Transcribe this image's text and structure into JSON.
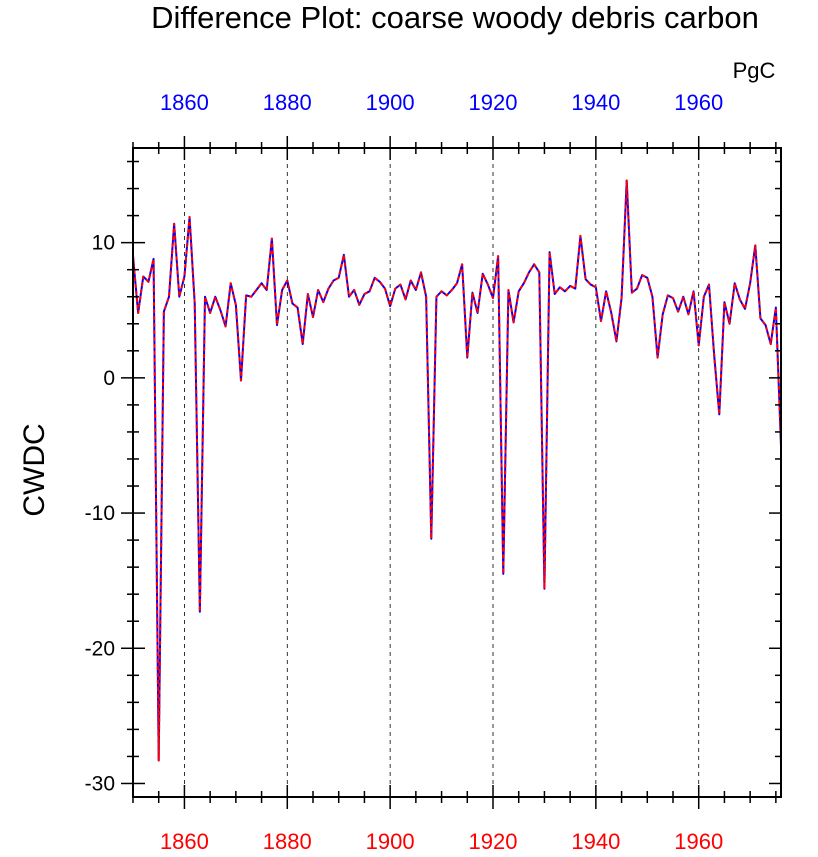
{
  "chart_data": {
    "type": "line",
    "title": "Difference Plot: coarse woody debris carbon",
    "units": "PgC",
    "ylabel": "CWDC",
    "xlabel": "",
    "xlim": [
      1850,
      1976
    ],
    "ylim": [
      -31,
      17
    ],
    "yticks": [
      10,
      0,
      -10,
      -20,
      -30
    ],
    "xticks_bottom": [
      1860,
      1880,
      1900,
      1920,
      1940,
      1960
    ],
    "xticks_top": [
      1860,
      1880,
      1900,
      1920,
      1940,
      1960
    ],
    "grid": "vertical dashed at major x ticks",
    "colors": {
      "bottom_axis": "#ff0000",
      "top_axis": "#0000ff",
      "series_1": "#0000ff",
      "series_2": "#ff0000"
    },
    "series": [
      {
        "line_style": "solid",
        "color": "#0000ff",
        "x": [
          1850,
          1851,
          1852,
          1853,
          1854,
          1855,
          1856,
          1857,
          1858,
          1859,
          1860,
          1861,
          1862,
          1863,
          1864,
          1865,
          1866,
          1867,
          1868,
          1869,
          1870,
          1871,
          1872,
          1873,
          1874,
          1875,
          1876,
          1877,
          1878,
          1879,
          1880,
          1881,
          1882,
          1883,
          1884,
          1885,
          1886,
          1887,
          1888,
          1889,
          1890,
          1891,
          1892,
          1893,
          1894,
          1895,
          1896,
          1897,
          1898,
          1899,
          1900,
          1901,
          1902,
          1903,
          1904,
          1905,
          1906,
          1907,
          1908,
          1909,
          1910,
          1911,
          1912,
          1913,
          1914,
          1915,
          1916,
          1917,
          1918,
          1919,
          1920,
          1921,
          1922,
          1923,
          1924,
          1925,
          1926,
          1927,
          1928,
          1929,
          1930,
          1931,
          1932,
          1933,
          1934,
          1935,
          1936,
          1937,
          1938,
          1939,
          1940,
          1941,
          1942,
          1943,
          1944,
          1945,
          1946,
          1947,
          1948,
          1949,
          1950,
          1951,
          1952,
          1953,
          1954,
          1955,
          1956,
          1957,
          1958,
          1959,
          1960,
          1961,
          1962,
          1963,
          1964,
          1965,
          1966,
          1967,
          1968,
          1969,
          1970,
          1971,
          1972,
          1973,
          1974,
          1975,
          1976
        ],
        "y": [
          9.0,
          4.8,
          7.5,
          7.1,
          8.8,
          -28.3,
          4.9,
          6.0,
          11.4,
          6.0,
          7.5,
          11.9,
          5.5,
          -17.3,
          6.0,
          4.8,
          6.0,
          5.0,
          3.8,
          7.0,
          5.4,
          -0.2,
          6.1,
          6.0,
          6.5,
          7.0,
          6.5,
          10.3,
          3.9,
          6.5,
          7.2,
          5.5,
          5.2,
          2.5,
          6.2,
          4.5,
          6.5,
          5.6,
          6.6,
          7.2,
          7.4,
          9.1,
          6.0,
          6.5,
          5.4,
          6.2,
          6.4,
          7.4,
          7.1,
          6.6,
          5.3,
          6.6,
          6.9,
          5.8,
          7.2,
          6.5,
          7.8,
          6.0,
          -11.9,
          6.0,
          6.4,
          6.1,
          6.5,
          7.0,
          8.4,
          1.5,
          6.3,
          4.8,
          7.7,
          6.9,
          5.9,
          9.0,
          -14.5,
          6.5,
          4.1,
          6.4,
          7.0,
          7.8,
          8.4,
          7.8,
          -15.6,
          9.3,
          6.2,
          6.7,
          6.4,
          6.8,
          6.6,
          10.5,
          7.3,
          6.9,
          6.7,
          4.2,
          6.4,
          4.8,
          2.7,
          5.9,
          14.6,
          6.3,
          6.6,
          7.6,
          7.4,
          6.0,
          1.5,
          4.7,
          6.1,
          5.9,
          4.9,
          6.0,
          4.7,
          6.4,
          2.4,
          6.0,
          6.9,
          1.7,
          -2.7,
          5.6,
          4.0,
          7.0,
          5.8,
          5.1,
          7.0,
          9.8,
          4.4,
          3.9,
          2.5,
          5.2,
          -5.0
        ]
      },
      {
        "line_style": "dashed",
        "color": "#ff0000",
        "x": [
          1850,
          1851,
          1852,
          1853,
          1854,
          1855,
          1856,
          1857,
          1858,
          1859,
          1860,
          1861,
          1862,
          1863,
          1864,
          1865,
          1866,
          1867,
          1868,
          1869,
          1870,
          1871,
          1872,
          1873,
          1874,
          1875,
          1876,
          1877,
          1878,
          1879,
          1880,
          1881,
          1882,
          1883,
          1884,
          1885,
          1886,
          1887,
          1888,
          1889,
          1890,
          1891,
          1892,
          1893,
          1894,
          1895,
          1896,
          1897,
          1898,
          1899,
          1900,
          1901,
          1902,
          1903,
          1904,
          1905,
          1906,
          1907,
          1908,
          1909,
          1910,
          1911,
          1912,
          1913,
          1914,
          1915,
          1916,
          1917,
          1918,
          1919,
          1920,
          1921,
          1922,
          1923,
          1924,
          1925,
          1926,
          1927,
          1928,
          1929,
          1930,
          1931,
          1932,
          1933,
          1934,
          1935,
          1936,
          1937,
          1938,
          1939,
          1940,
          1941,
          1942,
          1943,
          1944,
          1945,
          1946,
          1947,
          1948,
          1949,
          1950,
          1951,
          1952,
          1953,
          1954,
          1955,
          1956,
          1957,
          1958,
          1959,
          1960,
          1961,
          1962,
          1963,
          1964,
          1965,
          1966,
          1967,
          1968,
          1969,
          1970,
          1971,
          1972,
          1973,
          1974,
          1975,
          1976
        ],
        "y": [
          9.0,
          4.8,
          7.5,
          7.1,
          8.8,
          -28.3,
          4.9,
          6.0,
          11.4,
          6.0,
          7.5,
          11.9,
          5.5,
          -17.3,
          6.0,
          4.8,
          6.0,
          5.0,
          3.8,
          7.0,
          5.4,
          -0.2,
          6.1,
          6.0,
          6.5,
          7.0,
          6.5,
          10.3,
          3.9,
          6.5,
          7.2,
          5.5,
          5.2,
          2.5,
          6.2,
          4.5,
          6.5,
          5.6,
          6.6,
          7.2,
          7.4,
          9.1,
          6.0,
          6.5,
          5.4,
          6.2,
          6.4,
          7.4,
          7.1,
          6.6,
          5.3,
          6.6,
          6.9,
          5.8,
          7.2,
          6.5,
          7.8,
          6.0,
          -11.9,
          6.0,
          6.4,
          6.1,
          6.5,
          7.0,
          8.4,
          1.5,
          6.3,
          4.8,
          7.7,
          6.9,
          5.9,
          9.0,
          -14.5,
          6.5,
          4.1,
          6.4,
          7.0,
          7.8,
          8.4,
          7.8,
          -15.6,
          9.3,
          6.2,
          6.7,
          6.4,
          6.8,
          6.6,
          10.5,
          7.3,
          6.9,
          6.7,
          4.2,
          6.4,
          4.8,
          2.7,
          5.9,
          14.6,
          6.3,
          6.6,
          7.6,
          7.4,
          6.0,
          1.5,
          4.7,
          6.1,
          5.9,
          4.9,
          6.0,
          4.7,
          6.4,
          2.4,
          6.0,
          6.9,
          1.7,
          -2.7,
          5.6,
          4.0,
          7.0,
          5.8,
          5.1,
          7.0,
          9.8,
          4.4,
          3.9,
          2.5,
          5.2,
          -5.0
        ]
      }
    ]
  }
}
